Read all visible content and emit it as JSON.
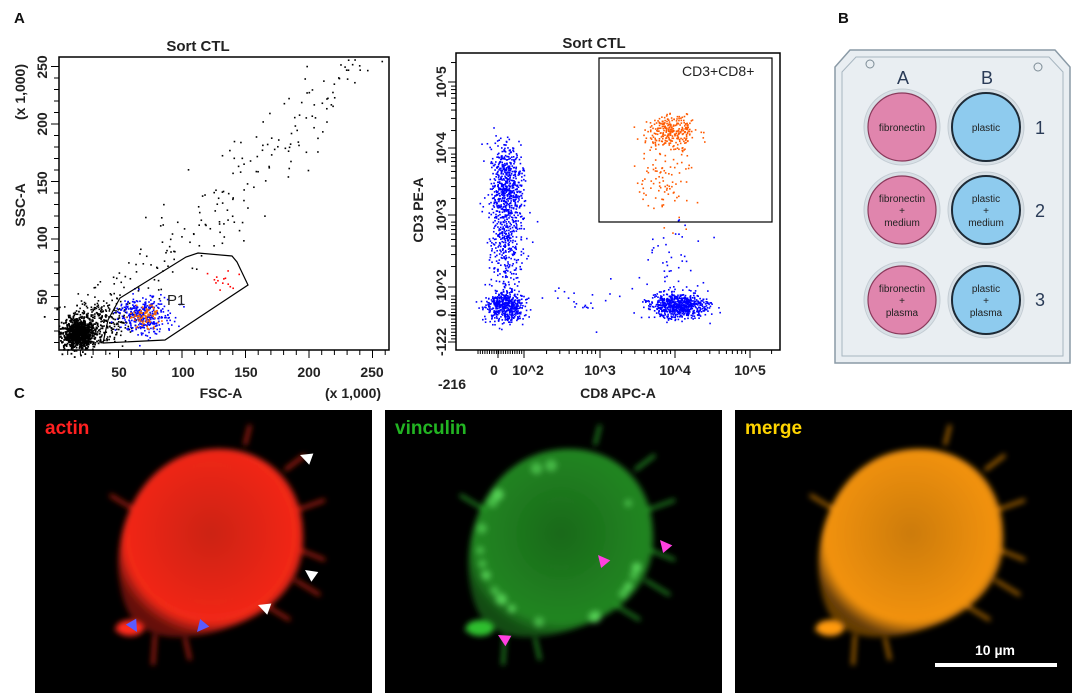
{
  "panels": {
    "a": {
      "letter": "A"
    },
    "b": {
      "letter": "B"
    },
    "c": {
      "letter": "C"
    }
  },
  "chart_data": [
    {
      "type": "scatter",
      "title": "Sort CTL",
      "xlabel": "FSC-A",
      "ylabel": "SSC-A",
      "x_multiplier": "(x 1,000)",
      "y_multiplier": "(x 1,000)",
      "xlim": [
        0,
        262
      ],
      "ylim": [
        0,
        262
      ],
      "xticks": [
        "50",
        "100",
        "150",
        "200",
        "250"
      ],
      "yticks": [
        "50",
        "100",
        "150",
        "200",
        "250"
      ],
      "gates": [
        {
          "name": "P1"
        }
      ],
      "colors": {
        "all_events": "#000000",
        "P1": "#0000ff",
        "subset": "#ff6a00",
        "outliers": "#ff0000"
      }
    },
    {
      "type": "scatter",
      "title": "Sort CTL",
      "xlabel": "CD8 APC-A",
      "ylabel": "CD3 PE-A",
      "xscale": "biexponential",
      "yscale": "biexponential",
      "xticks": [
        "-216",
        "0",
        "10^2",
        "10^3",
        "10^4",
        "10^5"
      ],
      "yticks": [
        "-122",
        "0",
        "10^2",
        "10^3",
        "10^4",
        "10^5"
      ],
      "gates": [
        {
          "name": "CD3+CD8+"
        }
      ],
      "colors": {
        "events": "#0000ff",
        "gated": "#ff5a00"
      }
    }
  ],
  "plate": {
    "columns": [
      "A",
      "B"
    ],
    "rows": [
      "1",
      "2",
      "3"
    ],
    "wells": [
      [
        [
          "fibronectin"
        ],
        [
          "plastic"
        ]
      ],
      [
        [
          "fibronectin",
          "+",
          "medium"
        ],
        [
          "plastic",
          "+",
          "medium"
        ]
      ],
      [
        [
          "fibronectin",
          "+",
          "plasma"
        ],
        [
          "plastic",
          "+",
          "plasma"
        ]
      ]
    ],
    "colors": {
      "fibronectin": "#e085ad",
      "plastic": "#8ecbee",
      "plate": "#e8edf1"
    }
  },
  "micrographs": [
    {
      "label": "actin",
      "color": "#ff2020"
    },
    {
      "label": "vinculin",
      "color": "#22b422"
    },
    {
      "label": "merge",
      "color": "#ffd400"
    }
  ],
  "scale_bar": {
    "label": "10 µm"
  },
  "arrow_colors": {
    "white": "#ffffff",
    "blue": "#5a5aff",
    "magenta": "#ff40e0"
  }
}
